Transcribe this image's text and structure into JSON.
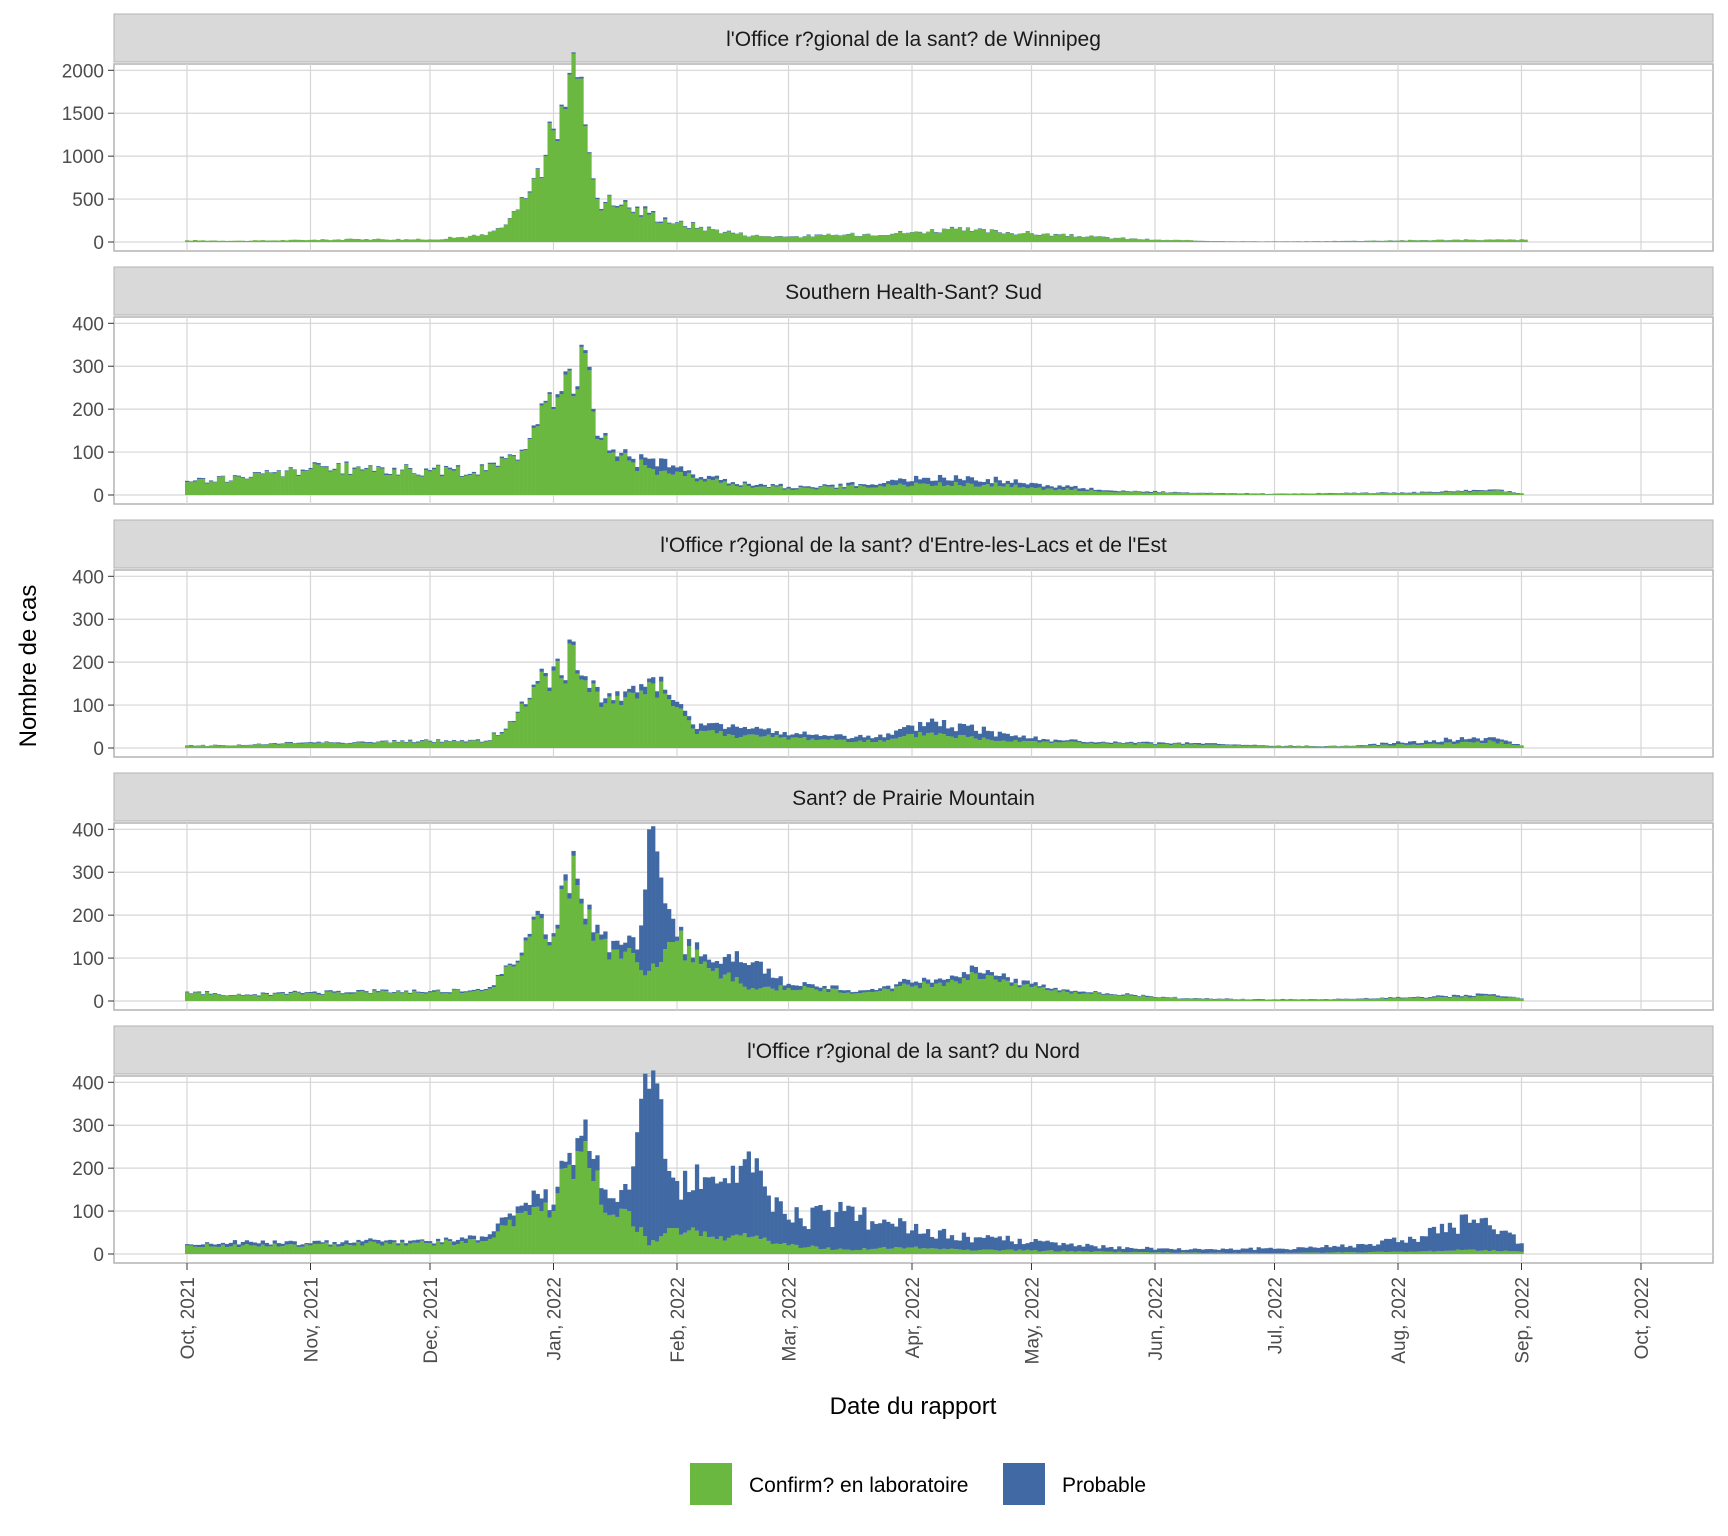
{
  "chart_data": {
    "type": "bar",
    "stacked": true,
    "xlabel": "Date du rapport",
    "ylabel": "Nombre de cas",
    "x_start": "2021-10-01",
    "x_end": "2022-09-02",
    "x_ticks": [
      "Oct, 2021",
      "Nov, 2021",
      "Dec, 2021",
      "Jan, 2022",
      "Feb, 2022",
      "Mar, 2022",
      "Apr, 2022",
      "May, 2022",
      "Jun, 2022",
      "Jul, 2022",
      "Aug, 2022",
      "Sep, 2022",
      "Oct, 2022"
    ],
    "legend_position": "bottom",
    "grid": true,
    "colors": {
      "confirmed": "#6ab840",
      "probable": "#4169a3",
      "strip": "#d9d9d9",
      "grid": "#d6d6d6",
      "panel_border": "#b3b3b3"
    },
    "legend": [
      {
        "key": "confirmed",
        "label": "Confirm? en laboratoire"
      },
      {
        "key": "probable",
        "label": "Probable"
      }
    ],
    "panels": [
      {
        "title": "l'Office r?gional de la sant? de Winnipeg",
        "ylim": [
          0,
          2050
        ],
        "yticks": [
          0,
          500,
          1000,
          1500,
          2000
        ],
        "series": [
          {
            "date": "2021-10-01",
            "confirmed": 20,
            "probable": 0
          },
          {
            "date": "2021-10-15",
            "confirmed": 15,
            "probable": 0
          },
          {
            "date": "2021-11-01",
            "confirmed": 25,
            "probable": 0
          },
          {
            "date": "2021-11-15",
            "confirmed": 35,
            "probable": 0
          },
          {
            "date": "2021-12-01",
            "confirmed": 30,
            "probable": 0
          },
          {
            "date": "2021-12-15",
            "confirmed": 80,
            "probable": 2
          },
          {
            "date": "2021-12-20",
            "confirmed": 200,
            "probable": 5
          },
          {
            "date": "2021-12-25",
            "confirmed": 500,
            "probable": 10
          },
          {
            "date": "2021-12-30",
            "confirmed": 1000,
            "probable": 15
          },
          {
            "date": "2022-01-01",
            "confirmed": 1300,
            "probable": 20
          },
          {
            "date": "2022-01-03",
            "confirmed": 1580,
            "probable": 20
          },
          {
            "date": "2022-01-05",
            "confirmed": 1950,
            "probable": 20
          },
          {
            "date": "2022-01-07",
            "confirmed": 1900,
            "probable": 20
          },
          {
            "date": "2022-01-09",
            "confirmed": 1350,
            "probable": 20
          },
          {
            "date": "2022-01-12",
            "confirmed": 500,
            "probable": 15
          },
          {
            "date": "2022-01-18",
            "confirmed": 420,
            "probable": 15
          },
          {
            "date": "2022-01-25",
            "confirmed": 320,
            "probable": 20
          },
          {
            "date": "2022-02-01",
            "confirmed": 220,
            "probable": 10
          },
          {
            "date": "2022-02-10",
            "confirmed": 140,
            "probable": 8
          },
          {
            "date": "2022-02-20",
            "confirmed": 70,
            "probable": 5
          },
          {
            "date": "2022-03-01",
            "confirmed": 60,
            "probable": 5
          },
          {
            "date": "2022-03-15",
            "confirmed": 80,
            "probable": 5
          },
          {
            "date": "2022-04-01",
            "confirmed": 110,
            "probable": 5
          },
          {
            "date": "2022-04-10",
            "confirmed": 140,
            "probable": 8
          },
          {
            "date": "2022-04-25",
            "confirmed": 110,
            "probable": 6
          },
          {
            "date": "2022-05-15",
            "confirmed": 60,
            "probable": 4
          },
          {
            "date": "2022-06-01",
            "confirmed": 25,
            "probable": 2
          },
          {
            "date": "2022-06-20",
            "confirmed": 8,
            "probable": 1
          },
          {
            "date": "2022-07-05",
            "confirmed": 6,
            "probable": 1
          },
          {
            "date": "2022-07-20",
            "confirmed": 12,
            "probable": 1
          },
          {
            "date": "2022-08-05",
            "confirmed": 20,
            "probable": 2
          },
          {
            "date": "2022-08-20",
            "confirmed": 25,
            "probable": 2
          },
          {
            "date": "2022-09-02",
            "confirmed": 25,
            "probable": 2
          }
        ]
      },
      {
        "title": "Southern Health-Sant? Sud",
        "ylim": [
          0,
          410
        ],
        "yticks": [
          0,
          100,
          200,
          300,
          400
        ],
        "series": [
          {
            "date": "2021-10-01",
            "confirmed": 30,
            "probable": 3
          },
          {
            "date": "2021-10-15",
            "confirmed": 40,
            "probable": 2
          },
          {
            "date": "2021-11-01",
            "confirmed": 60,
            "probable": 3
          },
          {
            "date": "2021-11-15",
            "confirmed": 60,
            "probable": 3
          },
          {
            "date": "2021-12-01",
            "confirmed": 55,
            "probable": 3
          },
          {
            "date": "2021-12-15",
            "confirmed": 55,
            "probable": 3
          },
          {
            "date": "2021-12-22",
            "confirmed": 90,
            "probable": 3
          },
          {
            "date": "2021-12-28",
            "confirmed": 160,
            "probable": 5
          },
          {
            "date": "2022-01-01",
            "confirmed": 200,
            "probable": 5
          },
          {
            "date": "2022-01-04",
            "confirmed": 280,
            "probable": 8
          },
          {
            "date": "2022-01-06",
            "confirmed": 230,
            "probable": 6
          },
          {
            "date": "2022-01-08",
            "confirmed": 345,
            "probable": 5
          },
          {
            "date": "2022-01-12",
            "confirmed": 130,
            "probable": 8
          },
          {
            "date": "2022-01-20",
            "confirmed": 80,
            "probable": 10
          },
          {
            "date": "2022-01-26",
            "confirmed": 60,
            "probable": 25
          },
          {
            "date": "2022-02-05",
            "confirmed": 40,
            "probable": 8
          },
          {
            "date": "2022-02-15",
            "confirmed": 25,
            "probable": 5
          },
          {
            "date": "2022-03-01",
            "confirmed": 15,
            "probable": 4
          },
          {
            "date": "2022-03-20",
            "confirmed": 20,
            "probable": 5
          },
          {
            "date": "2022-04-05",
            "confirmed": 25,
            "probable": 15
          },
          {
            "date": "2022-04-20",
            "confirmed": 25,
            "probable": 12
          },
          {
            "date": "2022-05-05",
            "confirmed": 15,
            "probable": 8
          },
          {
            "date": "2022-05-20",
            "confirmed": 8,
            "probable": 3
          },
          {
            "date": "2022-06-10",
            "confirmed": 4,
            "probable": 1
          },
          {
            "date": "2022-07-01",
            "confirmed": 2,
            "probable": 1
          },
          {
            "date": "2022-07-20",
            "confirmed": 4,
            "probable": 1
          },
          {
            "date": "2022-08-10",
            "confirmed": 5,
            "probable": 2
          },
          {
            "date": "2022-08-25",
            "confirmed": 10,
            "probable": 3
          },
          {
            "date": "2022-09-01",
            "confirmed": 3,
            "probable": 1
          }
        ]
      },
      {
        "title": "l'Office r?gional de la sant? d'Entre-les-Lacs et de l'Est",
        "ylim": [
          0,
          410
        ],
        "yticks": [
          0,
          100,
          200,
          300,
          400
        ],
        "series": [
          {
            "date": "2021-10-01",
            "confirmed": 5,
            "probable": 1
          },
          {
            "date": "2021-10-15",
            "confirmed": 6,
            "probable": 1
          },
          {
            "date": "2021-11-01",
            "confirmed": 12,
            "probable": 2
          },
          {
            "date": "2021-11-15",
            "confirmed": 12,
            "probable": 2
          },
          {
            "date": "2021-12-01",
            "confirmed": 15,
            "probable": 2
          },
          {
            "date": "2021-12-15",
            "confirmed": 15,
            "probable": 2
          },
          {
            "date": "2021-12-22",
            "confirmed": 60,
            "probable": 3
          },
          {
            "date": "2021-12-28",
            "confirmed": 150,
            "probable": 6
          },
          {
            "date": "2022-01-01",
            "confirmed": 180,
            "probable": 10
          },
          {
            "date": "2022-01-04",
            "confirmed": 150,
            "probable": 8
          },
          {
            "date": "2022-01-06",
            "confirmed": 240,
            "probable": 8
          },
          {
            "date": "2022-01-10",
            "confirmed": 130,
            "probable": 10
          },
          {
            "date": "2022-01-18",
            "confirmed": 100,
            "probable": 10
          },
          {
            "date": "2022-01-26",
            "confirmed": 150,
            "probable": 15
          },
          {
            "date": "2022-02-05",
            "confirmed": 45,
            "probable": 10
          },
          {
            "date": "2022-02-15",
            "confirmed": 30,
            "probable": 25
          },
          {
            "date": "2022-02-25",
            "confirmed": 25,
            "probable": 10
          },
          {
            "date": "2022-03-10",
            "confirmed": 20,
            "probable": 10
          },
          {
            "date": "2022-03-25",
            "confirmed": 15,
            "probable": 10
          },
          {
            "date": "2022-04-05",
            "confirmed": 35,
            "probable": 25
          },
          {
            "date": "2022-04-20",
            "confirmed": 20,
            "probable": 20
          },
          {
            "date": "2022-05-05",
            "confirmed": 15,
            "probable": 5
          },
          {
            "date": "2022-05-20",
            "confirmed": 10,
            "probable": 3
          },
          {
            "date": "2022-06-10",
            "confirmed": 8,
            "probable": 3
          },
          {
            "date": "2022-07-01",
            "confirmed": 4,
            "probable": 1
          },
          {
            "date": "2022-07-20",
            "confirmed": 4,
            "probable": 1
          },
          {
            "date": "2022-08-10",
            "confirmed": 10,
            "probable": 8
          },
          {
            "date": "2022-08-25",
            "confirmed": 15,
            "probable": 10
          },
          {
            "date": "2022-09-01",
            "confirmed": 5,
            "probable": 1
          }
        ]
      },
      {
        "title": "Sant? de Prairie Mountain",
        "ylim": [
          0,
          410
        ],
        "yticks": [
          0,
          100,
          200,
          300,
          400
        ],
        "series": [
          {
            "date": "2021-10-01",
            "confirmed": 20,
            "probable": 2
          },
          {
            "date": "2021-10-15",
            "confirmed": 12,
            "probable": 2
          },
          {
            "date": "2021-11-01",
            "confirmed": 18,
            "probable": 3
          },
          {
            "date": "2021-11-15",
            "confirmed": 20,
            "probable": 3
          },
          {
            "date": "2021-12-01",
            "confirmed": 20,
            "probable": 3
          },
          {
            "date": "2021-12-15",
            "confirmed": 25,
            "probable": 3
          },
          {
            "date": "2021-12-22",
            "confirmed": 80,
            "probable": 5
          },
          {
            "date": "2021-12-28",
            "confirmed": 200,
            "probable": 10
          },
          {
            "date": "2022-01-01",
            "confirmed": 150,
            "probable": 8
          },
          {
            "date": "2022-01-04",
            "confirmed": 280,
            "probable": 15
          },
          {
            "date": "2022-01-07",
            "confirmed": 270,
            "probable": 15
          },
          {
            "date": "2022-01-11",
            "confirmed": 140,
            "probable": 20
          },
          {
            "date": "2022-01-16",
            "confirmed": 120,
            "probable": 20
          },
          {
            "date": "2022-01-22",
            "confirmed": 90,
            "probable": 30
          },
          {
            "date": "2022-01-25",
            "confirmed": 70,
            "probable": 330
          },
          {
            "date": "2022-02-01",
            "confirmed": 140,
            "probable": 10
          },
          {
            "date": "2022-02-10",
            "confirmed": 70,
            "probable": 20
          },
          {
            "date": "2022-02-20",
            "confirmed": 30,
            "probable": 60
          },
          {
            "date": "2022-03-01",
            "confirmed": 30,
            "probable": 10
          },
          {
            "date": "2022-03-20",
            "confirmed": 20,
            "probable": 5
          },
          {
            "date": "2022-04-05",
            "confirmed": 40,
            "probable": 10
          },
          {
            "date": "2022-04-20",
            "confirmed": 60,
            "probable": 12
          },
          {
            "date": "2022-05-05",
            "confirmed": 25,
            "probable": 5
          },
          {
            "date": "2022-05-20",
            "confirmed": 15,
            "probable": 3
          },
          {
            "date": "2022-06-10",
            "confirmed": 5,
            "probable": 1
          },
          {
            "date": "2022-07-01",
            "confirmed": 3,
            "probable": 1
          },
          {
            "date": "2022-07-20",
            "confirmed": 4,
            "probable": 1
          },
          {
            "date": "2022-08-10",
            "confirmed": 8,
            "probable": 3
          },
          {
            "date": "2022-08-25",
            "confirmed": 12,
            "probable": 4
          },
          {
            "date": "2022-09-01",
            "confirmed": 5,
            "probable": 1
          }
        ]
      },
      {
        "title": "l'Office r?gional de la sant? du Nord",
        "ylim": [
          0,
          410
        ],
        "yticks": [
          0,
          100,
          200,
          300,
          400
        ],
        "series": [
          {
            "date": "2021-10-01",
            "confirmed": 20,
            "probable": 3
          },
          {
            "date": "2021-10-15",
            "confirmed": 20,
            "probable": 8
          },
          {
            "date": "2021-11-01",
            "confirmed": 20,
            "probable": 5
          },
          {
            "date": "2021-11-15",
            "confirmed": 25,
            "probable": 8
          },
          {
            "date": "2021-12-01",
            "confirmed": 25,
            "probable": 5
          },
          {
            "date": "2021-12-15",
            "confirmed": 30,
            "probable": 10
          },
          {
            "date": "2021-12-28",
            "confirmed": 110,
            "probable": 30
          },
          {
            "date": "2022-01-01",
            "confirmed": 100,
            "probable": 15
          },
          {
            "date": "2022-01-04",
            "confirmed": 200,
            "probable": 15
          },
          {
            "date": "2022-01-07",
            "confirmed": 240,
            "probable": 30
          },
          {
            "date": "2022-01-10",
            "confirmed": 200,
            "probable": 40
          },
          {
            "date": "2022-01-15",
            "confirmed": 90,
            "probable": 40
          },
          {
            "date": "2022-01-20",
            "confirmed": 100,
            "probable": 50
          },
          {
            "date": "2022-01-25",
            "confirmed": 20,
            "probable": 365
          },
          {
            "date": "2022-02-01",
            "confirmed": 60,
            "probable": 110
          },
          {
            "date": "2022-02-10",
            "confirmed": 40,
            "probable": 140
          },
          {
            "date": "2022-02-20",
            "confirmed": 40,
            "probable": 150
          },
          {
            "date": "2022-03-01",
            "confirmed": 20,
            "probable": 60
          },
          {
            "date": "2022-03-15",
            "confirmed": 10,
            "probable": 90
          },
          {
            "date": "2022-04-01",
            "confirmed": 15,
            "probable": 40
          },
          {
            "date": "2022-04-15",
            "confirmed": 10,
            "probable": 30
          },
          {
            "date": "2022-05-01",
            "confirmed": 8,
            "probable": 20
          },
          {
            "date": "2022-05-20",
            "confirmed": 5,
            "probable": 10
          },
          {
            "date": "2022-06-10",
            "confirmed": 3,
            "probable": 8
          },
          {
            "date": "2022-07-01",
            "confirmed": 2,
            "probable": 10
          },
          {
            "date": "2022-07-20",
            "confirmed": 4,
            "probable": 15
          },
          {
            "date": "2022-08-05",
            "confirmed": 5,
            "probable": 30
          },
          {
            "date": "2022-08-20",
            "confirmed": 10,
            "probable": 70
          },
          {
            "date": "2022-09-01",
            "confirmed": 5,
            "probable": 20
          }
        ]
      }
    ]
  }
}
